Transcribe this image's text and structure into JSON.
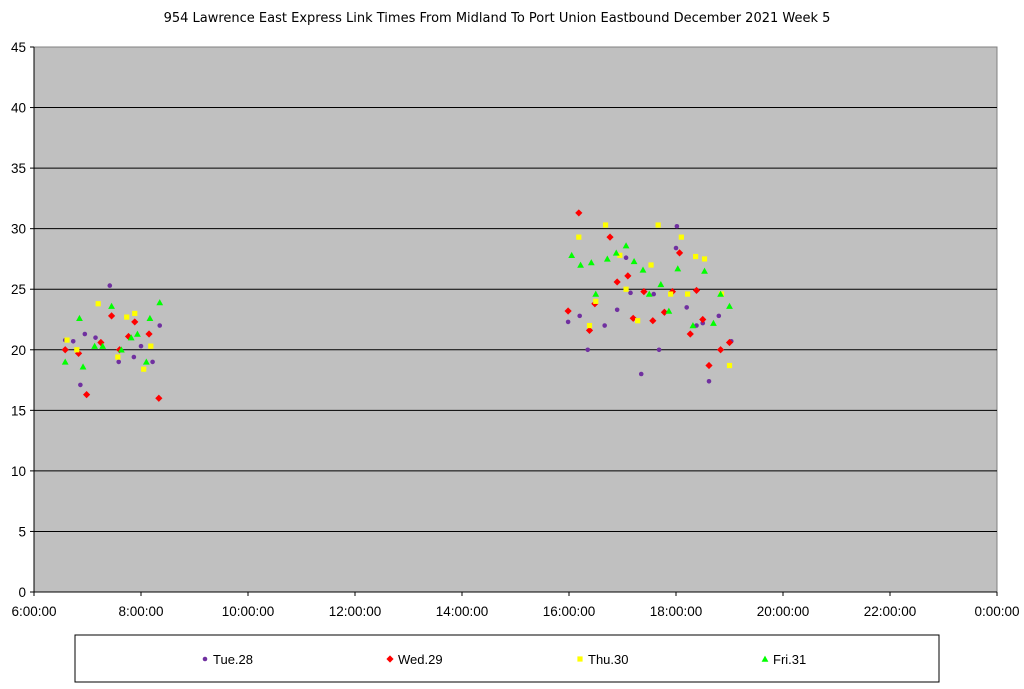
{
  "chart_data": {
    "type": "scatter",
    "title": "954 Lawrence East Express Link Times From Midland To Port Union Eastbound December 2021  Week 5",
    "xlabel": "",
    "ylabel": "",
    "xlim": [
      "6:00:00",
      "0:00:00"
    ],
    "ylim": [
      0,
      45
    ],
    "x_ticks": [
      "6:00:00",
      "8:00:00",
      "10:00:00",
      "12:00:00",
      "14:00:00",
      "16:00:00",
      "18:00:00",
      "20:00:00",
      "22:00:00",
      "0:00:00"
    ],
    "y_ticks": [
      "0",
      "5",
      "10",
      "15",
      "20",
      "25",
      "30",
      "35",
      "40",
      "45"
    ],
    "grid": "horizontal",
    "legend_position": "bottom",
    "plot_background": "#c0c0c0",
    "series": [
      {
        "name": "Tue.28",
        "marker": "circle",
        "color": "#7030a0",
        "points": [
          [
            "6:35",
            20.8
          ],
          [
            "6:44",
            20.7
          ],
          [
            "6:52",
            17.1
          ],
          [
            "6:57",
            21.3
          ],
          [
            "7:09",
            21.0
          ],
          [
            "7:25",
            25.3
          ],
          [
            "7:35",
            19.0
          ],
          [
            "7:52",
            19.4
          ],
          [
            "8:00",
            20.3
          ],
          [
            "8:13",
            19.0
          ],
          [
            "8:21",
            22.0
          ],
          [
            "15:59",
            22.3
          ],
          [
            "16:12",
            22.8
          ],
          [
            "16:21",
            20.0
          ],
          [
            "16:40",
            22.0
          ],
          [
            "16:54",
            23.3
          ],
          [
            "17:04",
            27.6
          ],
          [
            "17:09",
            24.7
          ],
          [
            "17:21",
            18.0
          ],
          [
            "17:35",
            24.6
          ],
          [
            "17:41",
            20.0
          ],
          [
            "18:00",
            28.4
          ],
          [
            "18:01",
            30.2
          ],
          [
            "18:12",
            23.5
          ],
          [
            "18:23",
            22.0
          ],
          [
            "18:30",
            22.2
          ],
          [
            "18:37",
            17.4
          ],
          [
            "18:48",
            22.8
          ],
          [
            "19:02",
            20.7
          ]
        ]
      },
      {
        "name": "Wed.29",
        "marker": "diamond",
        "color": "#ff0000",
        "points": [
          [
            "6:35",
            20.0
          ],
          [
            "6:50",
            19.7
          ],
          [
            "6:59",
            16.3
          ],
          [
            "7:15",
            20.6
          ],
          [
            "7:27",
            22.8
          ],
          [
            "7:36",
            20.0
          ],
          [
            "7:46",
            21.1
          ],
          [
            "7:53",
            22.3
          ],
          [
            "8:09",
            21.3
          ],
          [
            "8:20",
            16.0
          ],
          [
            "15:59",
            23.2
          ],
          [
            "16:11",
            31.3
          ],
          [
            "16:23",
            21.6
          ],
          [
            "16:29",
            23.8
          ],
          [
            "16:46",
            29.3
          ],
          [
            "16:54",
            25.6
          ],
          [
            "17:06",
            26.1
          ],
          [
            "17:12",
            22.6
          ],
          [
            "17:24",
            24.8
          ],
          [
            "17:34",
            22.4
          ],
          [
            "17:47",
            23.1
          ],
          [
            "17:56",
            24.8
          ],
          [
            "18:04",
            28.0
          ],
          [
            "18:16",
            21.3
          ],
          [
            "18:23",
            24.9
          ],
          [
            "18:30",
            22.5
          ],
          [
            "18:37",
            18.7
          ],
          [
            "18:50",
            20.0
          ],
          [
            "19:00",
            20.6
          ]
        ]
      },
      {
        "name": "Thu.30",
        "marker": "square",
        "color": "#ffff00",
        "points": [
          [
            "6:37",
            20.8
          ],
          [
            "6:48",
            20.0
          ],
          [
            "7:12",
            23.8
          ],
          [
            "7:34",
            19.4
          ],
          [
            "7:44",
            22.7
          ],
          [
            "7:53",
            23.0
          ],
          [
            "8:03",
            18.4
          ],
          [
            "8:11",
            20.3
          ],
          [
            "16:11",
            29.3
          ],
          [
            "16:23",
            22.0
          ],
          [
            "16:30",
            24.0
          ],
          [
            "16:41",
            30.3
          ],
          [
            "16:57",
            27.8
          ],
          [
            "17:04",
            25.0
          ],
          [
            "17:17",
            22.4
          ],
          [
            "17:32",
            27.0
          ],
          [
            "17:40",
            30.3
          ],
          [
            "17:54",
            24.6
          ],
          [
            "18:06",
            29.3
          ],
          [
            "18:13",
            24.6
          ],
          [
            "18:22",
            27.7
          ],
          [
            "18:32",
            27.5
          ],
          [
            "18:51",
            24.6
          ],
          [
            "19:00",
            18.7
          ]
        ]
      },
      {
        "name": "Fri.31",
        "marker": "triangle",
        "color": "#00ff00",
        "points": [
          [
            "6:35",
            19.0
          ],
          [
            "6:51",
            22.6
          ],
          [
            "6:55",
            18.6
          ],
          [
            "7:08",
            20.3
          ],
          [
            "7:17",
            20.3
          ],
          [
            "7:27",
            23.6
          ],
          [
            "7:38",
            20.0
          ],
          [
            "7:49",
            21.0
          ],
          [
            "7:56",
            21.3
          ],
          [
            "8:06",
            19.0
          ],
          [
            "8:10",
            22.6
          ],
          [
            "8:21",
            23.9
          ],
          [
            "16:03",
            27.8
          ],
          [
            "16:13",
            27.0
          ],
          [
            "16:25",
            27.2
          ],
          [
            "16:30",
            24.6
          ],
          [
            "16:43",
            27.5
          ],
          [
            "16:53",
            28.0
          ],
          [
            "17:04",
            28.6
          ],
          [
            "17:13",
            27.3
          ],
          [
            "17:23",
            26.6
          ],
          [
            "17:30",
            24.6
          ],
          [
            "17:43",
            25.4
          ],
          [
            "17:52",
            23.2
          ],
          [
            "18:02",
            26.7
          ],
          [
            "18:19",
            22.0
          ],
          [
            "18:32",
            26.5
          ],
          [
            "18:42",
            22.2
          ],
          [
            "18:50",
            24.6
          ],
          [
            "19:00",
            23.6
          ]
        ]
      }
    ]
  }
}
